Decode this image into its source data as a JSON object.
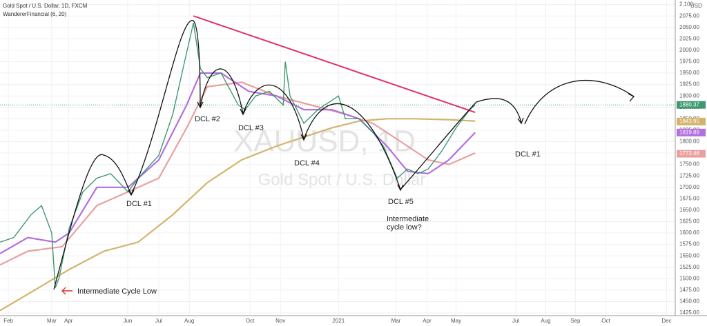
{
  "chart_data": {
    "type": "line",
    "title": "Gold Spot / U.S. Dollar, 1D, FXCM",
    "indicator": "WandererFinancial (6, 20)",
    "watermark": [
      "XAUUSD, 1D",
      "Gold Spot / U.S. Dollar"
    ],
    "currency": "USD",
    "xlim": [
      -0.28,
      22.3
    ],
    "xticks": [
      {
        "value": 0,
        "label": "Feb"
      },
      {
        "value": 1.45,
        "label": "Mar"
      },
      {
        "value": 2.01,
        "label": "Apr"
      },
      {
        "value": 3.99,
        "label": "Jun"
      },
      {
        "value": 5.03,
        "label": "Jul"
      },
      {
        "value": 6.05,
        "label": "Aug"
      },
      {
        "value": 8.08,
        "label": "Oct"
      },
      {
        "value": 9.1,
        "label": "Nov"
      },
      {
        "value": 11.04,
        "label": "2021"
      },
      {
        "value": 12.96,
        "label": "Mar"
      },
      {
        "value": 14,
        "label": "Apr"
      },
      {
        "value": 14.97,
        "label": "May"
      },
      {
        "value": 16.97,
        "label": "Jul"
      },
      {
        "value": 17.97,
        "label": "Aug"
      },
      {
        "value": 18.96,
        "label": "Sep"
      },
      {
        "value": 19.98,
        "label": "Oct"
      },
      {
        "value": 22.01,
        "label": "Dec"
      }
    ],
    "ylim": [
      1419,
      2110
    ],
    "yticks": [
      {
        "value": 1425,
        "label": "1425.00"
      },
      {
        "value": 1450,
        "label": "1450.00"
      },
      {
        "value": 1475,
        "label": "1475.00"
      },
      {
        "value": 1500,
        "label": "1500.00"
      },
      {
        "value": 1525,
        "label": "1525.00"
      },
      {
        "value": 1550,
        "label": "1550.00"
      },
      {
        "value": 1575,
        "label": "1575.00"
      },
      {
        "value": 1600,
        "label": "1600.00"
      },
      {
        "value": 1625,
        "label": "1625.00"
      },
      {
        "value": 1650,
        "label": "1650.00"
      },
      {
        "value": 1675,
        "label": "1675.00"
      },
      {
        "value": 1700,
        "label": "1700.00"
      },
      {
        "value": 1725,
        "label": "1725.00"
      },
      {
        "value": 1750,
        "label": "1750.00"
      },
      {
        "value": 1775,
        "label": "1775.00"
      },
      {
        "value": 1800,
        "label": "1800.00"
      },
      {
        "value": 1825,
        "label": "1825.00"
      },
      {
        "value": 1850,
        "label": "1850.00"
      },
      {
        "value": 1875,
        "label": "1875.00"
      },
      {
        "value": 1900,
        "label": "1900.00"
      },
      {
        "value": 1925,
        "label": "1925.00"
      },
      {
        "value": 1950,
        "label": "1950.00"
      },
      {
        "value": 1975,
        "label": "1975.00"
      },
      {
        "value": 2000,
        "label": "2000.00"
      },
      {
        "value": 2025,
        "label": "2025.00"
      },
      {
        "value": 2050,
        "label": "2050.00"
      },
      {
        "value": 2075,
        "label": "2075.00"
      },
      {
        "value": 2100,
        "label": "2,100"
      }
    ],
    "grid": true,
    "series": [
      {
        "color": "#3d9970",
        "last": 1880.37,
        "x": [
          -0.28,
          0.18,
          0.76,
          1.11,
          1.45,
          1.57,
          1.69,
          2.03,
          2.49,
          2.96,
          3.42,
          4.0,
          4.34,
          5.03,
          5.5,
          5.84,
          6.19,
          6.42,
          6.65,
          7.11,
          7.69,
          7.92,
          8.27,
          8.73,
          9.19,
          9.26,
          9.42,
          9.88,
          10.35,
          11.04,
          11.27,
          11.73,
          12.19,
          12.54,
          13.0,
          13.35,
          13.7,
          14.04,
          14.5,
          14.97,
          15.43,
          15.61
        ],
        "values": [
          1580,
          1590,
          1640,
          1660,
          1600,
          1480,
          1500,
          1610,
          1690,
          1720,
          1730,
          1690,
          1720,
          1770,
          1860,
          1960,
          2060,
          1960,
          1940,
          1950,
          1880,
          1870,
          1900,
          1910,
          1880,
          1975,
          1900,
          1840,
          1870,
          1900,
          1850,
          1850,
          1820,
          1790,
          1720,
          1740,
          1730,
          1740,
          1780,
          1830,
          1870,
          1880
        ]
      },
      {
        "color": "#b36ee0",
        "last": 1819.89,
        "x": [
          -0.28,
          0.65,
          1.57,
          2.03,
          2.96,
          4.0,
          5.03,
          5.96,
          6.42,
          7.11,
          8.04,
          8.96,
          9.88,
          10.81,
          11.73,
          12.66,
          13.35,
          14.04,
          14.73,
          15.61
        ],
        "values": [
          1555,
          1590,
          1580,
          1600,
          1700,
          1700,
          1760,
          1880,
          1950,
          1950,
          1910,
          1900,
          1870,
          1870,
          1850,
          1790,
          1735,
          1730,
          1760,
          1820
        ]
      },
      {
        "color": "#e8a0a0",
        "last": 1773.46,
        "x": [
          -0.28,
          0.65,
          1.8,
          2.96,
          4.0,
          5.03,
          5.96,
          6.65,
          7.8,
          8.96,
          10.12,
          11.27,
          12.19,
          13.12,
          14.04,
          14.73,
          15.61
        ],
        "values": [
          1530,
          1560,
          1570,
          1660,
          1690,
          1720,
          1830,
          1920,
          1930,
          1900,
          1880,
          1860,
          1840,
          1800,
          1760,
          1750,
          1775
        ]
      },
      {
        "color": "#d4b36a",
        "last": 1843.95,
        "x": [
          -0.28,
          0.88,
          2.03,
          3.19,
          4.34,
          5.5,
          6.65,
          7.8,
          8.96,
          9.88,
          10.81,
          11.73,
          12.66,
          13.58,
          14.73,
          15.61
        ],
        "values": [
          1430,
          1475,
          1520,
          1560,
          1580,
          1640,
          1710,
          1760,
          1790,
          1810,
          1830,
          1845,
          1850,
          1850,
          1848,
          1845
        ]
      }
    ],
    "trendline": {
      "color": "#e0306a",
      "x": [
        6.19,
        15.61
      ],
      "values": [
        2075,
        1864
      ]
    },
    "annotations": [
      "DCL #1",
      "DCL #2",
      "DCL #3",
      "DCL #4",
      "DCL #5",
      "Intermediate",
      "cycle low?",
      "DCL #1",
      "Intermediate Cycle Low"
    ]
  }
}
